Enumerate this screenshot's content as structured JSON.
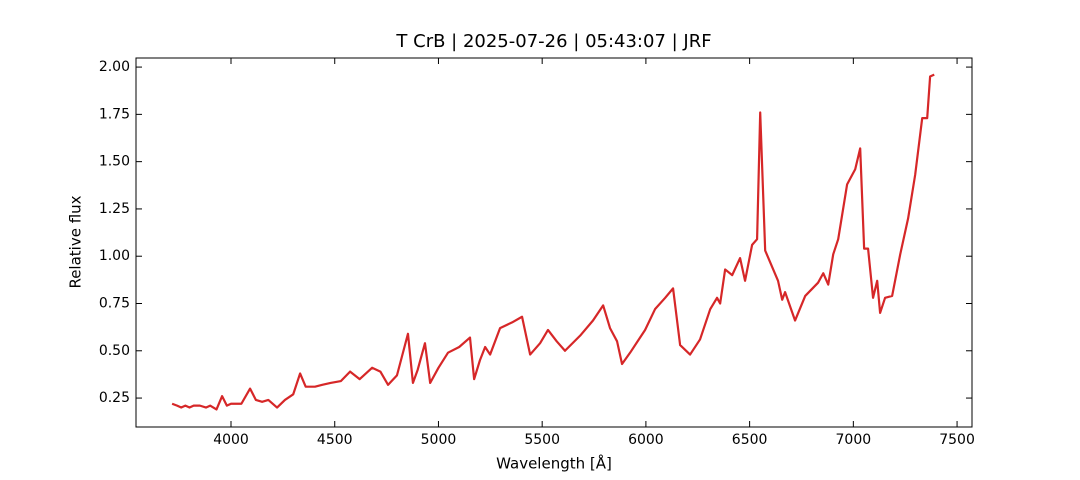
{
  "chart_data": {
    "type": "line",
    "title": "T CrB | 2025-07-26 | 05:43:07 | JRF",
    "x_label": "Wavelength [Å]",
    "y_label": "Relative flux",
    "color": "#d62728",
    "x": [
      3716,
      3740,
      3760,
      3780,
      3800,
      3820,
      3850,
      3880,
      3900,
      3930,
      3957,
      3980,
      4000,
      4050,
      4092,
      4120,
      4150,
      4180,
      4222,
      4260,
      4300,
      4333,
      4360,
      4405,
      4440,
      4480,
      4530,
      4574,
      4620,
      4680,
      4720,
      4757,
      4800,
      4853,
      4877,
      4900,
      4935,
      4960,
      5000,
      5046,
      5100,
      5152,
      5172,
      5200,
      5225,
      5249,
      5297,
      5355,
      5403,
      5442,
      5490,
      5528,
      5570,
      5610,
      5683,
      5745,
      5794,
      5827,
      5861,
      5885,
      5924,
      5996,
      6044,
      6093,
      6131,
      6165,
      6213,
      6261,
      6310,
      6343,
      6358,
      6382,
      6416,
      6454,
      6478,
      6512,
      6536,
      6551,
      6575,
      6637,
      6657,
      6671,
      6719,
      6768,
      6830,
      6855,
      6879,
      6903,
      6927,
      6970,
      7009,
      7033,
      7052,
      7071,
      7095,
      7115,
      7129,
      7153,
      7187,
      7226,
      7264,
      7298,
      7332,
      7356,
      7370,
      7390
    ],
    "values": [
      0.22,
      0.21,
      0.2,
      0.21,
      0.2,
      0.21,
      0.21,
      0.2,
      0.21,
      0.19,
      0.26,
      0.21,
      0.22,
      0.22,
      0.3,
      0.24,
      0.23,
      0.24,
      0.2,
      0.24,
      0.27,
      0.38,
      0.31,
      0.31,
      0.32,
      0.33,
      0.34,
      0.39,
      0.35,
      0.41,
      0.39,
      0.32,
      0.37,
      0.59,
      0.33,
      0.4,
      0.54,
      0.33,
      0.41,
      0.49,
      0.52,
      0.57,
      0.35,
      0.45,
      0.52,
      0.48,
      0.62,
      0.65,
      0.68,
      0.48,
      0.54,
      0.61,
      0.55,
      0.5,
      0.58,
      0.66,
      0.74,
      0.62,
      0.55,
      0.43,
      0.49,
      0.61,
      0.72,
      0.78,
      0.83,
      0.53,
      0.48,
      0.56,
      0.72,
      0.78,
      0.75,
      0.93,
      0.9,
      0.99,
      0.87,
      1.06,
      1.09,
      1.76,
      1.03,
      0.87,
      0.77,
      0.81,
      0.66,
      0.79,
      0.86,
      0.91,
      0.85,
      1.01,
      1.09,
      1.38,
      1.46,
      1.57,
      1.04,
      1.04,
      0.78,
      0.87,
      0.7,
      0.78,
      0.79,
      1.01,
      1.2,
      1.43,
      1.73,
      1.73,
      1.95,
      1.96
    ],
    "xlim": [
      3542,
      7572
    ],
    "ylim": [
      0.097,
      2.048
    ],
    "xticks": [
      4000,
      4500,
      5000,
      5500,
      6000,
      6500,
      7000,
      7500
    ],
    "yticks": [
      {
        "value": 0.25,
        "label": "0.25"
      },
      {
        "value": 0.5,
        "label": "0.50"
      },
      {
        "value": 0.75,
        "label": "0.75"
      },
      {
        "value": 1,
        "label": "1.00"
      },
      {
        "value": 1.25,
        "label": "1.25"
      },
      {
        "value": 1.5,
        "label": "1.50"
      },
      {
        "value": 1.75,
        "label": "1.75"
      },
      {
        "value": 2,
        "label": "2.00"
      }
    ]
  }
}
